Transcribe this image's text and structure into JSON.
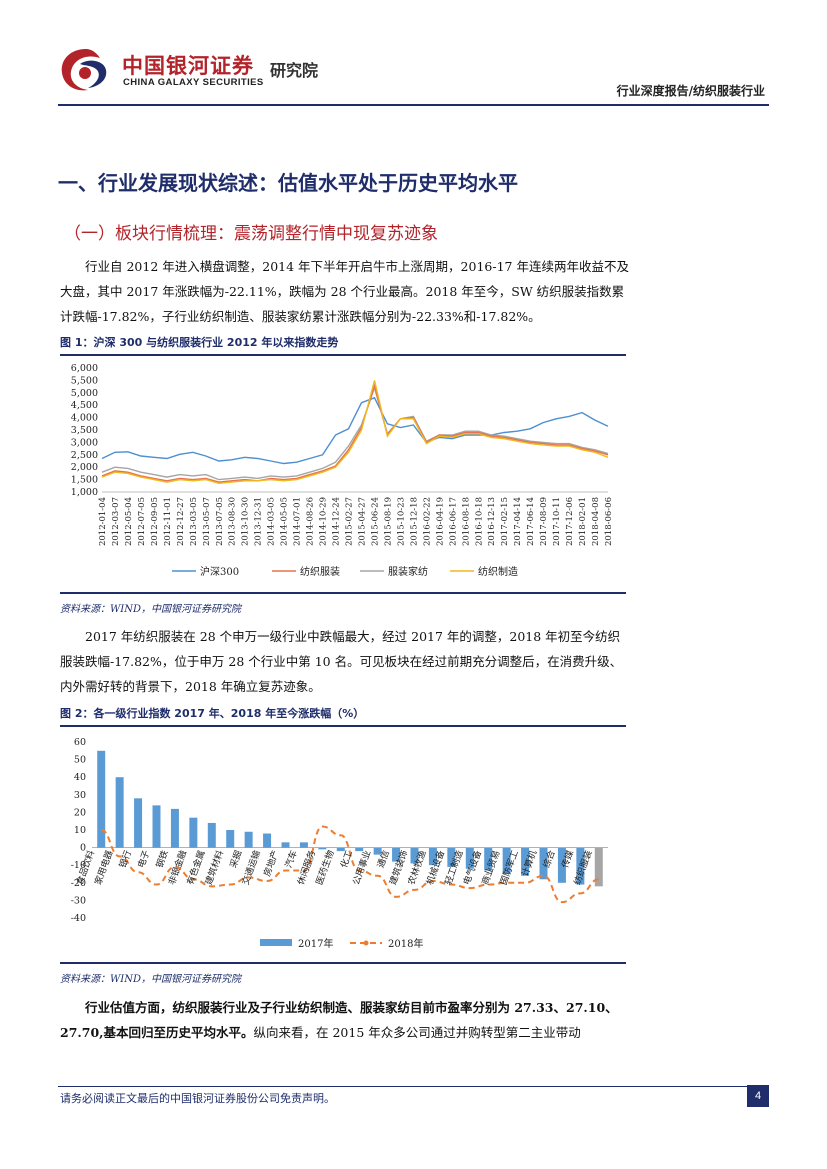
{
  "header": {
    "logo_cn": "中国银河证券",
    "logo_en": "CHINA GALAXY SECURITIES",
    "institute": "研究院",
    "report_type": "行业深度报告/纺织服装行业"
  },
  "headings": {
    "h1": "一、行业发展现状综述：估值水平处于历史平均水平",
    "h2": "（一）板块行情梳理：震荡调整行情中现复苏迹象"
  },
  "paragraphs": {
    "p1": "行业自 2012 年进入横盘调整，2014 年下半年开启牛市上涨周期，2016-17 年连续两年收益不及大盘，其中 2017 年涨跌幅为-22.11%，跌幅为 28 个行业最高。2018 年至今，SW 纺织服装指数累计跌幅-17.82%，子行业纺织制造、服装家纺累计涨跌幅分别为-22.33%和-17.82%。",
    "p2": "2017 年纺织服装在 28 个申万一级行业中跌幅最大，经过 2017 年的调整，2018 年初至今纺织服装跌幅-17.82%，位于申万 28 个行业中第 10 名。可见板块在经过前期充分调整后，在消费升级、内外需好转的背景下，2018 年确立复苏迹象。",
    "p3_bold": "行业估值方面，纺织服装行业及子行业纺织制造、服装家纺目前市盈率分别为 27.33、27.10、27.70,基本回归至历史平均水平。",
    "p3_rest": "纵向来看，在 2015 年众多公司通过并购转型第二主业带动"
  },
  "figure1": {
    "title": "图 1：沪深 300 与纺织服装行业 2012 年以来指数走势",
    "source": "资料来源：WIND，中国银河证券研究院"
  },
  "figure2": {
    "title": "图 2：各一级行业指数 2017 年、2018 年至今涨跌幅（%）",
    "source": "资料来源：WIND，中国银河证券研究院"
  },
  "colors": {
    "navy": "#1f2d6b",
    "red": "#b3232a",
    "hs300": "#4e8fd0",
    "fzfz": "#e8734a",
    "fzjf": "#a5a5a5",
    "fzzz": "#f2b81c",
    "bar2017": "#5b9bd5",
    "line2018": "#ed7d31"
  },
  "chart_data": [
    {
      "type": "line",
      "title": "沪深 300 与纺织服装行业 2012 年以来指数走势",
      "x": [
        "2012-01-04",
        "2012-03-07",
        "2012-05-04",
        "2012-07-05",
        "2012-09-05",
        "2012-11-01",
        "2012-12-27",
        "2013-03-05",
        "2013-05-07",
        "2013-07-05",
        "2013-08-30",
        "2013-10-30",
        "2013-12-31",
        "2014-03-05",
        "2014-05-05",
        "2014-07-01",
        "2014-08-26",
        "2014-10-29",
        "2014-12-24",
        "2015-02-27",
        "2015-04-27",
        "2015-06-24",
        "2015-08-19",
        "2015-10-23",
        "2015-12-18",
        "2016-02-22",
        "2016-04-19",
        "2016-06-17",
        "2016-08-18",
        "2016-10-18",
        "2016-12-13",
        "2017-02-15",
        "2017-04-14",
        "2017-06-14",
        "2017-08-09",
        "2017-10-11",
        "2017-12-06",
        "2018-02-01",
        "2018-04-08",
        "2018-06-06"
      ],
      "ylim": [
        1000,
        6000
      ],
      "yticks": [
        "6,000",
        "5,500",
        "5,000",
        "4,500",
        "4,000",
        "3,500",
        "3,000",
        "2,500",
        "2,000",
        "1,500",
        "1,000"
      ],
      "series": [
        {
          "name": "沪深300",
          "values": [
            2350,
            2600,
            2620,
            2450,
            2400,
            2350,
            2520,
            2600,
            2450,
            2250,
            2300,
            2400,
            2350,
            2250,
            2150,
            2200,
            2350,
            2500,
            3300,
            3550,
            4600,
            4800,
            3750,
            3600,
            3700,
            3000,
            3200,
            3150,
            3300,
            3300,
            3300,
            3400,
            3450,
            3550,
            3800,
            3950,
            4050,
            4200,
            3900,
            3650
          ]
        },
        {
          "name": "纺织服装",
          "values": [
            1650,
            1850,
            1800,
            1650,
            1550,
            1450,
            1550,
            1500,
            1550,
            1400,
            1450,
            1500,
            1450,
            1550,
            1500,
            1550,
            1700,
            1850,
            2050,
            2700,
            3600,
            5300,
            3300,
            3950,
            4000,
            3000,
            3300,
            3250,
            3400,
            3400,
            3250,
            3200,
            3100,
            3000,
            2950,
            2900,
            2900,
            2750,
            2650,
            2500
          ]
        },
        {
          "name": "服装家纺",
          "values": [
            1800,
            2000,
            1950,
            1800,
            1700,
            1600,
            1700,
            1650,
            1700,
            1500,
            1550,
            1600,
            1550,
            1650,
            1600,
            1650,
            1800,
            1950,
            2200,
            2850,
            3700,
            5200,
            3350,
            3950,
            4050,
            3050,
            3300,
            3300,
            3450,
            3450,
            3300,
            3250,
            3150,
            3050,
            3000,
            2950,
            2950,
            2800,
            2700,
            2550
          ]
        },
        {
          "name": "纺织制造",
          "values": [
            1600,
            1800,
            1750,
            1600,
            1500,
            1400,
            1500,
            1450,
            1500,
            1350,
            1400,
            1450,
            1450,
            1500,
            1450,
            1500,
            1650,
            1800,
            2000,
            2600,
            3500,
            5500,
            3250,
            3950,
            3950,
            2950,
            3250,
            3200,
            3350,
            3350,
            3200,
            3150,
            3050,
            2950,
            2900,
            2850,
            2850,
            2700,
            2600,
            2400
          ]
        }
      ],
      "legend": "bottom"
    },
    {
      "type": "bar",
      "title": "各一级行业指数 2017 年、2018 年至今涨跌幅（%）",
      "categories": [
        "食品饮料",
        "家用电器",
        "银行",
        "电子",
        "钢铁",
        "非银金融",
        "有色金属",
        "建筑材料",
        "采掘",
        "交通运输",
        "房地产",
        "汽车",
        "休闲服务",
        "医药生物",
        "化工",
        "公用事业",
        "通信",
        "建筑装饰",
        "农林牧渔",
        "机械设备",
        "轻工制造",
        "电气设备",
        "商业贸易",
        "国防军工",
        "计算机",
        "综合",
        "传媒",
        "纺织服装"
      ],
      "ylim": [
        -40,
        60
      ],
      "yticks": [
        60,
        50,
        40,
        30,
        20,
        10,
        0,
        -10,
        -20,
        -30,
        -40
      ],
      "series": [
        {
          "name": "2017年",
          "type": "bar",
          "values": [
            55,
            40,
            28,
            24,
            22,
            17,
            14,
            10,
            9,
            8,
            3,
            3,
            -1,
            -2,
            -2,
            -4,
            -8,
            -9,
            -10,
            -11,
            -12,
            -13,
            -15,
            -16,
            -18,
            -20,
            -21,
            -22
          ]
        },
        {
          "name": "2018年",
          "type": "line",
          "values": [
            10,
            -5,
            -14,
            -21,
            -11,
            -18,
            -22,
            -21,
            -17,
            -19,
            -13,
            -13,
            12,
            7,
            -13,
            -16,
            -28,
            -24,
            -19,
            -21,
            -23,
            -21,
            -20,
            -20,
            -16,
            -31,
            -26,
            -18
          ]
        }
      ],
      "legend": "bottom"
    }
  ],
  "footer": {
    "disclaimer": "请务必阅读正文最后的中国银河证券股份公司免责声明。",
    "page": "4"
  }
}
